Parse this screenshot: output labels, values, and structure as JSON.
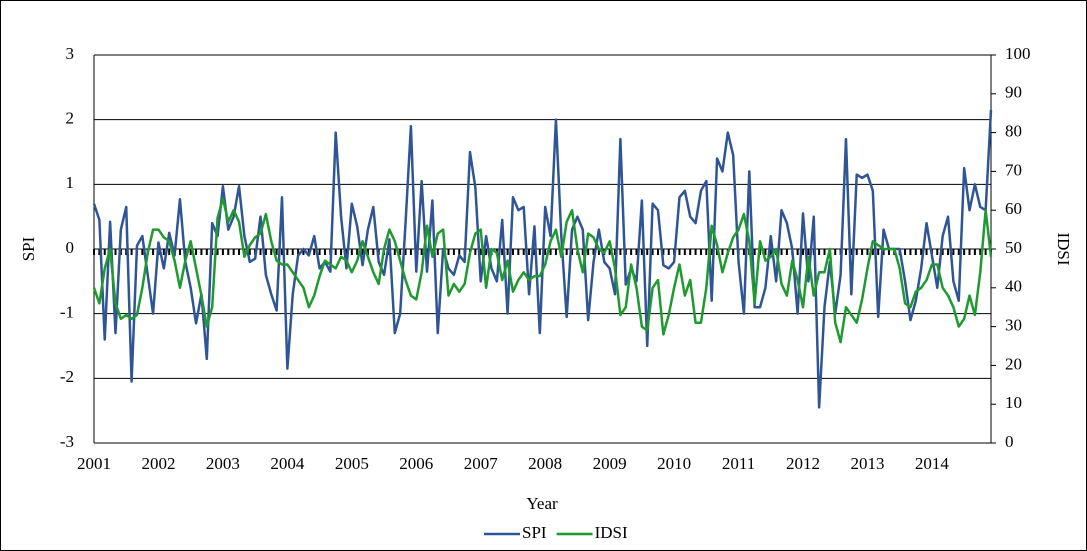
{
  "chart_data": {
    "type": "line",
    "categories": [
      "2001",
      null,
      null,
      null,
      null,
      null,
      null,
      null,
      null,
      null,
      null,
      null,
      "2002",
      null,
      null,
      null,
      null,
      null,
      null,
      null,
      null,
      null,
      null,
      null,
      "2003",
      null,
      null,
      null,
      null,
      null,
      null,
      null,
      null,
      null,
      null,
      null,
      "2004",
      null,
      null,
      null,
      null,
      null,
      null,
      null,
      null,
      null,
      null,
      null,
      "2005",
      null,
      null,
      null,
      null,
      null,
      null,
      null,
      null,
      null,
      null,
      null,
      "2006",
      null,
      null,
      null,
      null,
      null,
      null,
      null,
      null,
      null,
      null,
      null,
      "2007",
      null,
      null,
      null,
      null,
      null,
      null,
      null,
      null,
      null,
      null,
      null,
      "2008",
      null,
      null,
      null,
      null,
      null,
      null,
      null,
      null,
      null,
      null,
      null,
      "2009",
      null,
      null,
      null,
      null,
      null,
      null,
      null,
      null,
      null,
      null,
      null,
      "2010",
      null,
      null,
      null,
      null,
      null,
      null,
      null,
      null,
      null,
      null,
      null,
      "2011",
      null,
      null,
      null,
      null,
      null,
      null,
      null,
      null,
      null,
      null,
      null,
      "2012",
      null,
      null,
      null,
      null,
      null,
      null,
      null,
      null,
      null,
      null,
      null,
      "2013",
      null,
      null,
      null,
      null,
      null,
      null,
      null,
      null,
      null,
      null,
      null,
      "2014",
      null,
      null,
      null,
      null,
      null,
      null,
      null,
      null,
      null,
      null,
      null
    ],
    "x_label": "Year",
    "y_label": "SPI",
    "y2_label": "IDSI",
    "ylim": [
      -3,
      3
    ],
    "yticks": [
      -3,
      -2,
      -1,
      0,
      1,
      2,
      3
    ],
    "y2lim": [
      0,
      100
    ],
    "y2ticks": [
      0,
      10,
      20,
      30,
      40,
      50,
      60,
      70,
      80,
      90,
      100
    ],
    "grid": true,
    "legend": "bottom",
    "series": [
      {
        "name": "SPI",
        "color": "#2f5597",
        "values": [
          0.7,
          0.45,
          -1.4,
          0.42,
          -1.3,
          0.3,
          0.65,
          -2.05,
          0.05,
          0.2,
          -0.4,
          -1.0,
          0.1,
          -0.3,
          0.25,
          -0.1,
          0.77,
          -0.2,
          -0.6,
          -1.15,
          -0.7,
          -1.7,
          0.4,
          0.2,
          0.97,
          0.3,
          0.5,
          0.97,
          0.2,
          -0.2,
          -0.15,
          0.5,
          -0.4,
          -0.7,
          -0.95,
          0.8,
          -1.85,
          -0.7,
          -0.1,
          0.0,
          -0.1,
          0.2,
          -0.3,
          -0.2,
          -0.35,
          1.8,
          0.5,
          -0.3,
          0.7,
          0.35,
          -0.25,
          0.3,
          0.65,
          -0.2,
          -0.4,
          0.15,
          -1.3,
          -1.0,
          0.4,
          1.9,
          -0.35,
          1.05,
          -0.35,
          0.75,
          -1.3,
          0.0,
          -0.3,
          -0.4,
          -0.1,
          -0.2,
          1.5,
          0.95,
          -0.5,
          0.2,
          -0.3,
          -0.5,
          0.45,
          -1.0,
          0.8,
          0.6,
          0.65,
          -0.7,
          0.35,
          -1.3,
          0.65,
          0.2,
          2.0,
          0.2,
          -1.05,
          0.3,
          0.5,
          0.3,
          -1.1,
          -0.2,
          0.3,
          -0.2,
          -0.3,
          -0.7,
          1.7,
          -0.55,
          -0.3,
          -0.5,
          0.75,
          -1.5,
          0.7,
          0.6,
          -0.25,
          -0.3,
          -0.2,
          0.8,
          0.9,
          0.5,
          0.4,
          0.9,
          1.05,
          -0.8,
          1.4,
          1.2,
          1.8,
          1.45,
          -0.2,
          -1.0,
          1.2,
          -0.9,
          -0.9,
          -0.6,
          0.2,
          -0.5,
          0.6,
          0.4,
          0.0,
          -1.0,
          0.55,
          -0.5,
          0.5,
          -2.45,
          -0.9,
          -0.2,
          -1.0,
          -0.4,
          1.7,
          -0.7,
          1.15,
          1.1,
          1.15,
          0.9,
          -1.05,
          0.3,
          0.0,
          0.0,
          0.0,
          -0.5,
          -1.1,
          -0.8,
          -0.3,
          0.4,
          -0.1,
          -0.6,
          0.2,
          0.5,
          -0.5,
          -0.8,
          1.25,
          0.6,
          1.0,
          0.65,
          0.6,
          2.15
        ]
      },
      {
        "name": "IDSI",
        "color": "#1e9a2e",
        "axis": "y2",
        "values": [
          40,
          36,
          45,
          50,
          36,
          32,
          33,
          32,
          33,
          40,
          49,
          55,
          55,
          53,
          52,
          47,
          40,
          47,
          52,
          45,
          38,
          30,
          35,
          58,
          63,
          57,
          60,
          57,
          48,
          51,
          53,
          54,
          59,
          52,
          47,
          46,
          46,
          44,
          42,
          40,
          35,
          38,
          43,
          47,
          46,
          45,
          48,
          47,
          44,
          47,
          52,
          48,
          44,
          41,
          50,
          55,
          52,
          47,
          42,
          38,
          37,
          44,
          56,
          48,
          54,
          55,
          38,
          41,
          39,
          41,
          49,
          54,
          55,
          40,
          50,
          49,
          42,
          47,
          39,
          42,
          44,
          42,
          43,
          43,
          46,
          52,
          55,
          48,
          57,
          60,
          50,
          44,
          54,
          53,
          50,
          49,
          52,
          45,
          33,
          35,
          46,
          40,
          30,
          29,
          40,
          42,
          28,
          33,
          40,
          46,
          38,
          42,
          31,
          31,
          40,
          56,
          51,
          44,
          49,
          53,
          55,
          59,
          52,
          36,
          52,
          47,
          48,
          50,
          41,
          38,
          47,
          42,
          35,
          48,
          38,
          44,
          44,
          50,
          31,
          26,
          35,
          33,
          31,
          37,
          45,
          52,
          51,
          50,
          50,
          50,
          45,
          36,
          35,
          39,
          40,
          42,
          46,
          46,
          40,
          38,
          35,
          30,
          32,
          38,
          33,
          44,
          60,
          48
        ]
      }
    ]
  }
}
